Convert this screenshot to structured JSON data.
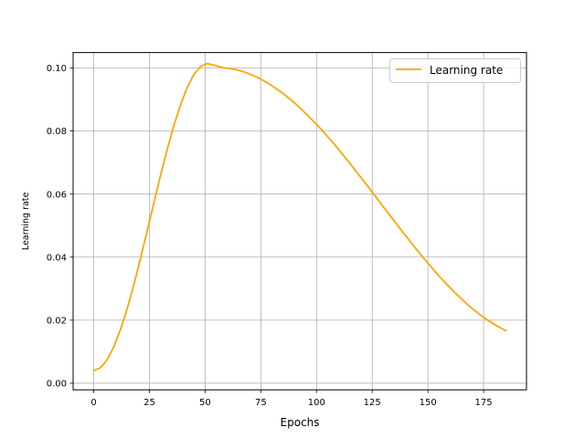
{
  "chart_data": {
    "type": "line",
    "title": "",
    "xlabel": "Epochs",
    "ylabel": "Learning rate",
    "xlim": [
      -9.25,
      194.25
    ],
    "ylim": [
      -0.0021,
      0.1049
    ],
    "xticks": [
      0,
      25,
      50,
      75,
      100,
      125,
      150,
      175
    ],
    "xtick_labels": [
      "0",
      "25",
      "50",
      "75",
      "100",
      "125",
      "150",
      "175"
    ],
    "yticks": [
      0.0,
      0.02,
      0.04,
      0.06,
      0.08,
      0.1
    ],
    "ytick_labels": [
      "0.00",
      "0.02",
      "0.04",
      "0.06",
      "0.08",
      "0.10"
    ],
    "grid": true,
    "legend": {
      "position": "upper-right",
      "entries": [
        "Learning rate"
      ]
    },
    "series": [
      {
        "name": "Learning rate",
        "color": "#ffa500",
        "x": [
          0,
          3,
          6,
          9,
          12,
          15,
          18,
          21,
          24,
          27,
          30,
          33,
          36,
          39,
          42,
          45,
          48,
          51,
          54,
          57,
          59,
          63,
          66,
          69,
          72,
          75,
          78,
          81,
          84,
          87,
          90,
          93,
          96,
          99,
          102,
          105,
          108,
          111,
          114,
          117,
          120,
          123,
          126,
          129,
          132,
          135,
          138,
          141,
          144,
          147,
          150,
          153,
          156,
          159,
          162,
          165,
          168,
          171,
          174,
          177,
          180,
          183,
          185
        ],
        "y": [
          0.004,
          0.0049,
          0.0074,
          0.0115,
          0.017,
          0.0236,
          0.0312,
          0.0396,
          0.0484,
          0.0572,
          0.066,
          0.0742,
          0.0818,
          0.0884,
          0.0939,
          0.098,
          0.1005,
          0.1014,
          0.1009,
          0.1003,
          0.1,
          0.0996,
          0.0991,
          0.0984,
          0.0975,
          0.0965,
          0.0953,
          0.0939,
          0.0924,
          0.0908,
          0.089,
          0.0871,
          0.085,
          0.0829,
          0.0806,
          0.0782,
          0.0758,
          0.0732,
          0.0706,
          0.0679,
          0.0652,
          0.0625,
          0.0597,
          0.0569,
          0.0541,
          0.0514,
          0.0486,
          0.0459,
          0.0432,
          0.0406,
          0.0381,
          0.0356,
          0.0332,
          0.031,
          0.0288,
          0.0268,
          0.0248,
          0.0231,
          0.0214,
          0.0199,
          0.0186,
          0.0174,
          0.0167
        ]
      }
    ]
  }
}
